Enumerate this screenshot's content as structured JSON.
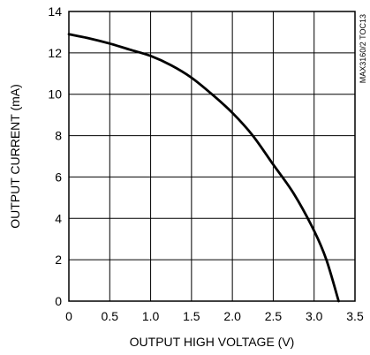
{
  "chart_data": {
    "type": "line",
    "title": "",
    "xlabel": "OUTPUT HIGH VOLTAGE (V)",
    "ylabel": "OUTPUT CURRENT (mA)",
    "xlim": [
      0,
      3.5
    ],
    "ylim": [
      0,
      14
    ],
    "xticks": [
      0,
      0.5,
      1.0,
      1.5,
      2.0,
      2.5,
      3.0,
      3.5
    ],
    "xtick_labels": [
      "0",
      "0.5",
      "1.0",
      "1.5",
      "2.0",
      "2.5",
      "3.0",
      "3.5"
    ],
    "yticks": [
      0,
      2,
      4,
      6,
      8,
      10,
      12,
      14
    ],
    "ytick_labels": [
      "0",
      "2",
      "4",
      "6",
      "8",
      "10",
      "12",
      "14"
    ],
    "grid": true,
    "note": "MAX3160/2 TOC13",
    "series": [
      {
        "x": [
          0,
          0.25,
          0.5,
          0.75,
          1.0,
          1.25,
          1.5,
          1.75,
          2.0,
          2.25,
          2.5,
          2.75,
          3.0,
          3.15,
          3.3
        ],
        "values": [
          12.9,
          12.7,
          12.45,
          12.15,
          11.85,
          11.4,
          10.8,
          10.0,
          9.1,
          8.0,
          6.6,
          5.2,
          3.4,
          2.0,
          0.0
        ],
        "color": "#000000"
      }
    ]
  }
}
